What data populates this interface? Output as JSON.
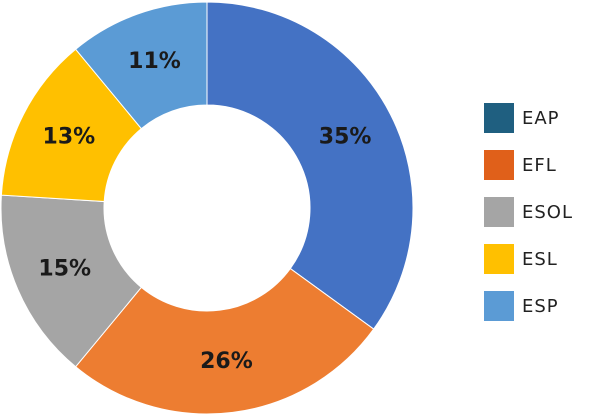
{
  "chart_data": {
    "type": "donut",
    "categories": [
      "EAP",
      "EFL",
      "ESOL",
      "ESL",
      "ESP"
    ],
    "values": [
      35,
      26,
      15,
      13,
      11
    ],
    "value_labels": [
      "35%",
      "26%",
      "15%",
      "13%",
      "11%"
    ],
    "colors": [
      "#4472c4",
      "#ed7d31",
      "#a5a5a5",
      "#ffc000",
      "#5b9bd5"
    ],
    "legend_colors": [
      "#1f5f80",
      "#e0601a",
      "#a5a5a5",
      "#ffc000",
      "#5b9bd5"
    ],
    "legend": "right"
  }
}
